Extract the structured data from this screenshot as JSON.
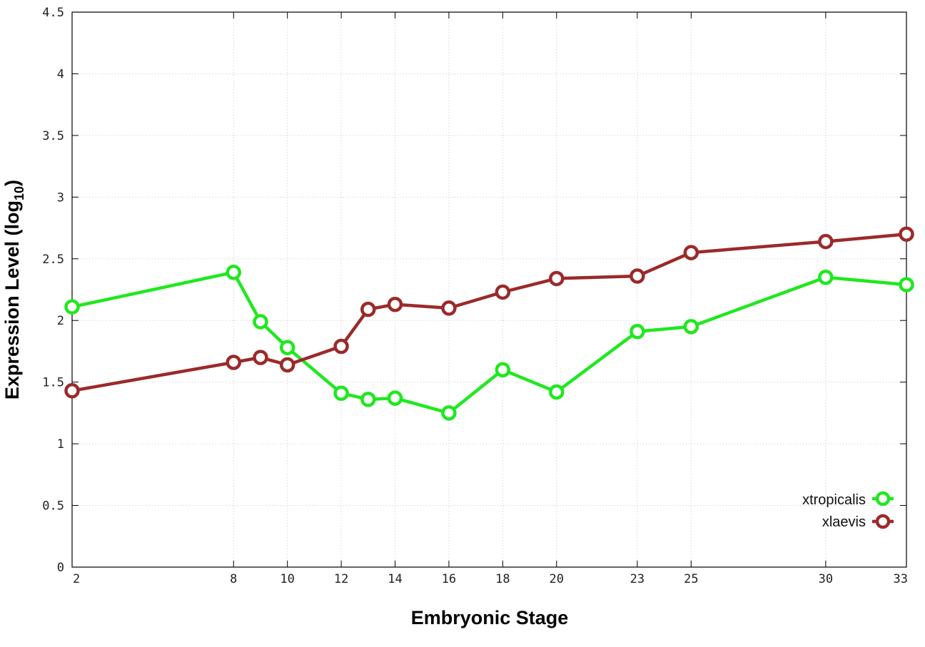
{
  "chart_data": {
    "type": "line",
    "x_tick_labels": [
      "2",
      "8",
      "10",
      "12",
      "14",
      "16",
      "18",
      "20",
      "23",
      "25",
      "30",
      "33"
    ],
    "y_tick_labels": [
      "0",
      "0.5",
      "1",
      "1.5",
      "2",
      "2.5",
      "3",
      "3.5",
      "4",
      "4.5"
    ],
    "xlabel": "Embryonic Stage",
    "ylabel_main": "Expression Level (log",
    "ylabel_sub": "10",
    "ylabel_close": ")",
    "xlim": [
      2,
      33
    ],
    "ylim": [
      0,
      4.5
    ],
    "grid": true,
    "legend_position": "bottom-right",
    "series": [
      {
        "name": "xtropicalis",
        "color": "#1fe81f",
        "x": [
          2,
          8,
          9,
          10,
          12,
          13,
          14,
          16,
          18,
          20,
          23,
          25,
          30,
          33
        ],
        "y": [
          2.11,
          2.39,
          1.99,
          1.78,
          1.41,
          1.36,
          1.37,
          1.25,
          1.6,
          1.42,
          1.91,
          1.95,
          2.35,
          2.29
        ]
      },
      {
        "name": "xlaevis",
        "color": "#9b2a2a",
        "x": [
          2,
          8,
          9,
          10,
          12,
          13,
          14,
          16,
          18,
          20,
          23,
          25,
          30,
          33
        ],
        "y": [
          1.43,
          1.66,
          1.7,
          1.64,
          1.79,
          2.09,
          2.13,
          2.1,
          2.23,
          2.34,
          2.36,
          2.55,
          2.64,
          2.7
        ]
      }
    ]
  }
}
